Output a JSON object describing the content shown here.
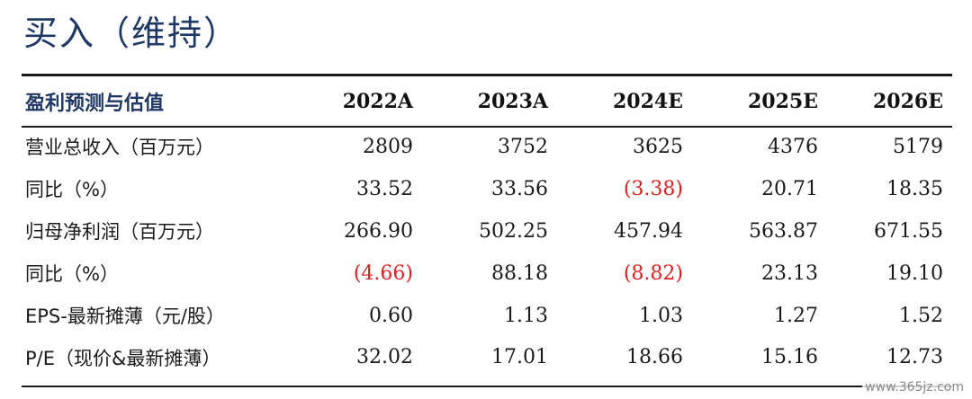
{
  "rating": "买入（维持）",
  "table": {
    "header": {
      "label": "盈利预测与估值",
      "years": [
        "2022A",
        "2023A",
        "2024E",
        "2025E",
        "2026E"
      ]
    },
    "rows": [
      {
        "label": "营业总收入（百万元）",
        "values": [
          "2809",
          "3752",
          "3625",
          "4376",
          "5179"
        ],
        "negative": [
          false,
          false,
          false,
          false,
          false
        ]
      },
      {
        "label": "同比（%）",
        "values": [
          "33.52",
          "33.56",
          "(3.38)",
          "20.71",
          "18.35"
        ],
        "negative": [
          false,
          false,
          true,
          false,
          false
        ]
      },
      {
        "label": "归母净利润（百万元）",
        "values": [
          "266.90",
          "502.25",
          "457.94",
          "563.87",
          "671.55"
        ],
        "negative": [
          false,
          false,
          false,
          false,
          false
        ]
      },
      {
        "label": "同比（%）",
        "values": [
          "(4.66)",
          "88.18",
          "(8.82)",
          "23.13",
          "19.10"
        ],
        "negative": [
          true,
          false,
          true,
          false,
          false
        ]
      },
      {
        "label": "EPS-最新摊薄（元/股）",
        "values": [
          "0.60",
          "1.13",
          "1.03",
          "1.27",
          "1.52"
        ],
        "negative": [
          false,
          false,
          false,
          false,
          false
        ]
      },
      {
        "label": "P/E（现价&最新摊薄）",
        "values": [
          "32.02",
          "17.01",
          "18.66",
          "15.16",
          "12.73"
        ],
        "negative": [
          false,
          false,
          false,
          false,
          false
        ]
      }
    ]
  },
  "watermark": "www.365jz.com",
  "colors": {
    "heading": "#1f3864",
    "negative": "#e02020",
    "text": "#1a1a1a"
  }
}
